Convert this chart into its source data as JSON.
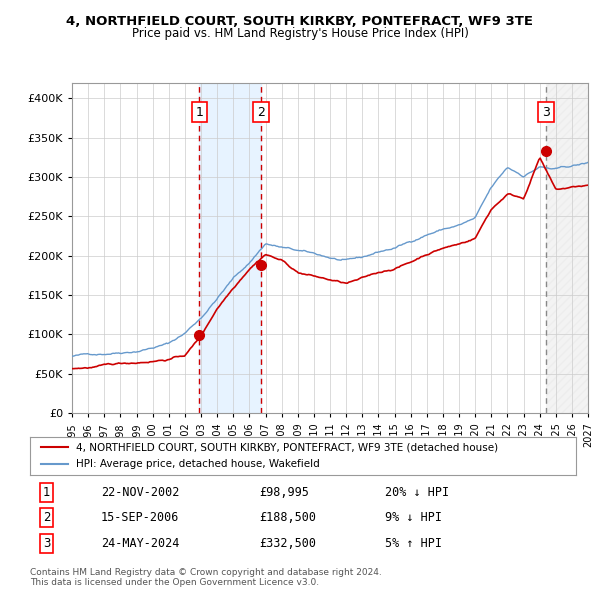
{
  "title1": "4, NORTHFIELD COURT, SOUTH KIRKBY, PONTEFRACT, WF9 3TE",
  "title2": "Price paid vs. HM Land Registry's House Price Index (HPI)",
  "ylabel": "",
  "hpi_color": "#6699cc",
  "price_color": "#cc0000",
  "dot_color": "#cc0000",
  "bg_color": "#ffffff",
  "grid_color": "#cccccc",
  "sale1_date": 2002.9,
  "sale1_price": 98995,
  "sale1_label": "1",
  "sale1_text": "22-NOV-2002    £98,995    20% ↓ HPI",
  "sale2_date": 2006.71,
  "sale2_price": 188500,
  "sale2_label": "2",
  "sale2_text": "15-SEP-2006    £188,500    9% ↓ HPI",
  "sale3_date": 2024.39,
  "sale3_price": 332500,
  "sale3_label": "3",
  "sale3_text": "24-MAY-2024    £332,500    5% ↑ HPI",
  "legend1": "4, NORTHFIELD COURT, SOUTH KIRKBY, PONTEFRACT, WF9 3TE (detached house)",
  "legend2": "HPI: Average price, detached house, Wakefield",
  "footnote1": "Contains HM Land Registry data © Crown copyright and database right 2024.",
  "footnote2": "This data is licensed under the Open Government Licence v3.0.",
  "xmin": 1995.0,
  "xmax": 2027.0,
  "ymin": 0,
  "ymax": 420000,
  "shade_x1": 2002.9,
  "shade_x2": 2006.71,
  "hatch_x1": 2024.39,
  "hatch_x2": 2027.0
}
